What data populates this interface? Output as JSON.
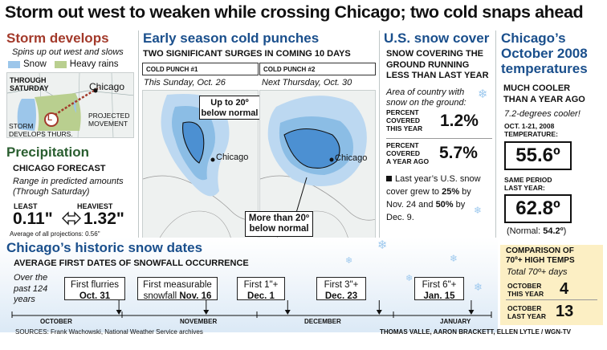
{
  "headline": "Storm out west to weaken while crossing Chicago; two cold snaps ahead",
  "storm": {
    "title": "Storm develops",
    "subtitle": "Spins up out west and slows",
    "legend": [
      {
        "label": "Snow",
        "color": "#9cc6ea"
      },
      {
        "label": "Heavy rains",
        "color": "#b9cf8f"
      }
    ],
    "map_labels": {
      "through": "THROUGH",
      "saturday": "SATURDAY",
      "chicago": "Chicago",
      "projected": "PROJECTED",
      "movement": "MOVEMENT",
      "storm": "STORM",
      "develops": "DEVELOPS THURS.",
      "low": "L"
    }
  },
  "precip": {
    "title": "Precipitation",
    "forecast": "CHICAGO FORECAST",
    "range": "Range in predicted amounts",
    "through": "(Through Saturday)",
    "least_label": "LEAST",
    "least_value": "0.11\"",
    "heaviest_label": "HEAVIEST",
    "heaviest_value": "1.32\"",
    "average": "Average of all projections: 0.56\""
  },
  "cold": {
    "title": "Early season cold punches",
    "subtitle": "TWO SIGNIFICANT SURGES IN COMING 10 DAYS",
    "punch1_label": "COLD PUNCH #1",
    "punch1_date": "This Sunday, Oct. 26",
    "punch2_label": "COLD PUNCH #2",
    "punch2_date": "Next Thursday, Oct. 30",
    "callout1_line1": "Up to 20º",
    "callout1_line2": "below normal",
    "callout2_line1": "More than 20º",
    "callout2_line2": "below normal",
    "chicago": "Chicago"
  },
  "snowcover": {
    "title": "U.S. snow cover",
    "sub1": "SNOW COVERING THE",
    "sub2": "GROUND RUNNING",
    "sub3": "LESS THAN LAST YEAR",
    "area1": "Area of country with",
    "area2": "snow on the ground:",
    "pc_this_1": "PERCENT",
    "pc_this_2": "COVERED",
    "pc_this_3": "THIS YEAR",
    "pc_this_value": "1.2%",
    "pc_ago_1": "PERCENT",
    "pc_ago_2": "COVERED",
    "pc_ago_3": "A YEAR AGO",
    "pc_ago_value": "5.7%",
    "note1": "Last year’s U.S. snow",
    "note2a": "cover grew to ",
    "note2b": "25%",
    "note2c": " by",
    "note3a": "Nov. 24 and ",
    "note3b": "50%",
    "note3c": " by",
    "note4": "Dec. 9."
  },
  "temps": {
    "title1": "Chicago’s",
    "title2": "October 2008",
    "title3": "temperatures",
    "sub1": "MUCH COOLER",
    "sub2": "THAN A YEAR AGO",
    "cooler": "7.2-degrees cooler!",
    "oct_label1": "OCT. 1-21, 2008",
    "oct_label2": "TEMPERATURE:",
    "oct_value": "55.6º",
    "same1": "SAME PERIOD",
    "same2": "LAST YEAR:",
    "last_value": "62.8º",
    "normal_a": "(Normal: ",
    "normal_b": "54.2º",
    "normal_c": ")",
    "comp1": "COMPARISON OF",
    "comp2": "70º+ HIGH TEMPS",
    "total": "Total 70º+ days",
    "oct_this1": "OCTOBER",
    "oct_this2": "THIS YEAR",
    "oct_this_value": "4",
    "oct_last1": "OCTOBER",
    "oct_last2": "LAST YEAR",
    "oct_last_value": "13"
  },
  "history": {
    "title": "Chicago’s historic snow dates",
    "subtitle": "AVERAGE FIRST DATES OF SNOWFALL OCCURRENCE",
    "over1": "Over the",
    "over2": "past 124",
    "over3": "years",
    "events": [
      {
        "line1": "First flurries",
        "line2": "Oct. 31",
        "fraction": 0.223
      },
      {
        "line1a": "First measurable",
        "line2a": "snowfall ",
        "line2b": "Nov. 16",
        "fraction": 0.405
      },
      {
        "line1": "First 1\"+",
        "line2": "Dec. 1",
        "fraction": 0.575
      },
      {
        "line1": "First 3\"+",
        "line2": "Dec. 23",
        "fraction": 0.766
      },
      {
        "line1": "First 6\"+",
        "line2": "Jan. 15",
        "fraction": 0.958
      }
    ],
    "months": [
      "OCTOBER",
      "NOVEMBER",
      "DECEMBER",
      "JANUARY"
    ]
  },
  "sources": "SOURCES: Frank Wachowski, National Weather Service archives",
  "credits": "THOMAS VALLE, AARON BRACKETT, ELLEN LYTLE / WGN-TV"
}
